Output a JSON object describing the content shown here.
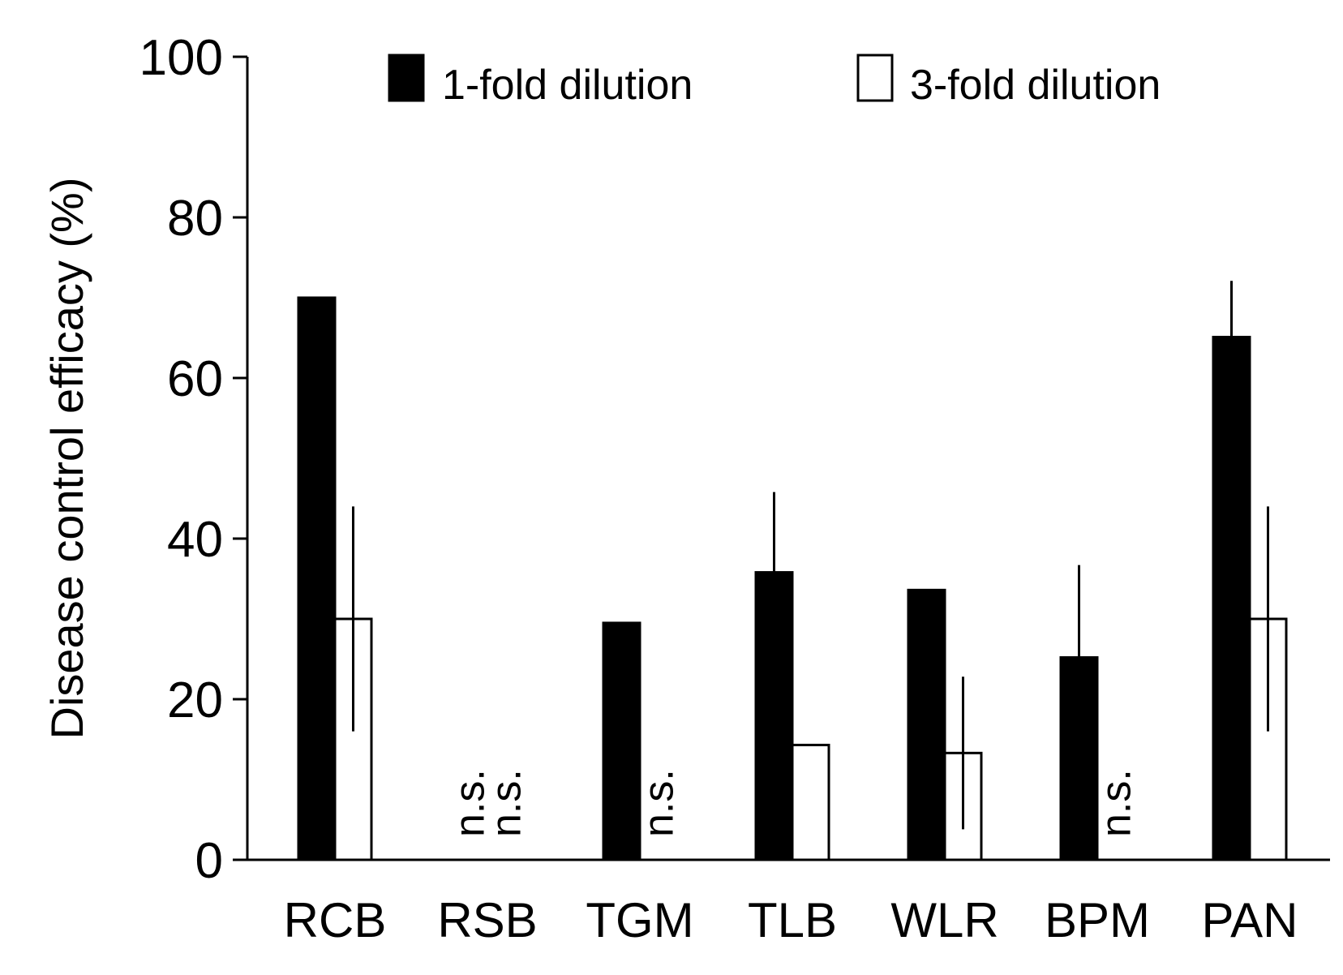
{
  "chart_data": {
    "type": "bar",
    "title": "",
    "xlabel": "",
    "ylabel": "Disease control efficacy (%)",
    "ylim": [
      0,
      100
    ],
    "yticks": [
      "0",
      "20",
      "40",
      "60",
      "80",
      "100"
    ],
    "grid": false,
    "legend_position": "top",
    "categories": [
      "RCB",
      "RSB",
      "TGM",
      "TLB",
      "WLR",
      "BPM",
      "PAN"
    ],
    "series": [
      {
        "name": "1-fold dilution",
        "fill": "#000000",
        "values": [
          70,
          null,
          29.5,
          35.8,
          33.6,
          25.2,
          65.1
        ],
        "error": [
          null,
          null,
          null,
          10,
          null,
          11.5,
          7
        ]
      },
      {
        "name": "3-fold dilution",
        "fill": "#ffffff",
        "values": [
          30,
          null,
          null,
          14.3,
          13.3,
          null,
          30
        ],
        "error": [
          14,
          null,
          null,
          null,
          9.5,
          null,
          14
        ]
      }
    ],
    "annotations": [
      {
        "text": "n.s.",
        "category": "RSB",
        "series": 0
      },
      {
        "text": "n.s.",
        "category": "RSB",
        "series": 1
      },
      {
        "text": "n.s.",
        "category": "TGM",
        "series": 1
      },
      {
        "text": "n.s.",
        "category": "BPM",
        "series": 1
      }
    ]
  }
}
